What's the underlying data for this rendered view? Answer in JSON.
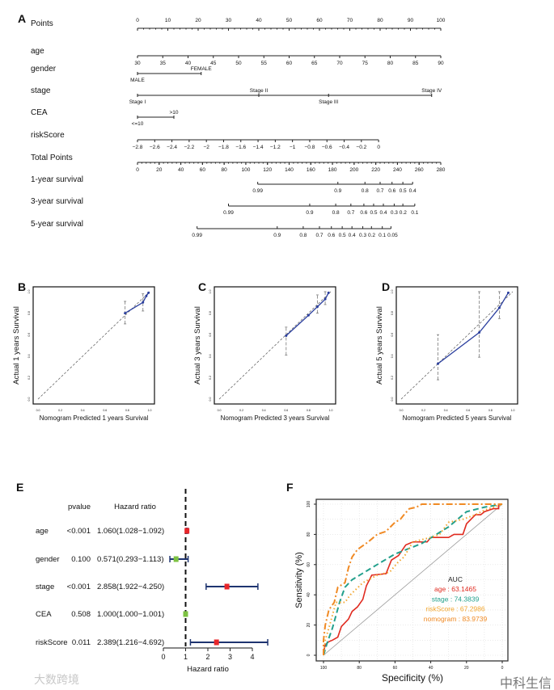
{
  "panels": {
    "A": "A",
    "B": "B",
    "C": "C",
    "D": "D",
    "E": "E",
    "F": "F"
  },
  "watermarks": {
    "left": "大数跨境",
    "right": "中科生信"
  },
  "chart_data": [
    {
      "type": "nomogram",
      "panel": "A",
      "rows": [
        {
          "label": "Points",
          "kind": "points",
          "min": 0,
          "max": 100,
          "ticks": [
            0,
            10,
            20,
            30,
            40,
            50,
            60,
            70,
            80,
            90,
            100
          ]
        },
        {
          "label": "age",
          "kind": "linear",
          "ticks": [
            30,
            35,
            40,
            45,
            50,
            55,
            60,
            65,
            70,
            75,
            80,
            85,
            90
          ],
          "points_range": [
            0,
            100
          ]
        },
        {
          "label": "gender",
          "kind": "categorical",
          "levels": [
            {
              "name": "MALE",
              "points": 0,
              "side": "below"
            },
            {
              "name": "FEMALE",
              "points": 21,
              "side": "above"
            }
          ]
        },
        {
          "label": "stage",
          "kind": "categorical",
          "levels": [
            {
              "name": "Stage I",
              "points": 0,
              "side": "below"
            },
            {
              "name": "Stage II",
              "points": 40,
              "side": "above"
            },
            {
              "name": "Stage III",
              "points": 63,
              "side": "below"
            },
            {
              "name": "Stage IV",
              "points": 97,
              "side": "above"
            }
          ]
        },
        {
          "label": "CEA",
          "kind": "categorical",
          "levels": [
            {
              "name": "<=10",
              "points": 0,
              "side": "below"
            },
            {
              "name": ">10",
              "points": 12,
              "side": "above"
            }
          ]
        },
        {
          "label": "riskScore",
          "kind": "linear",
          "ticks": [
            -2.8,
            -2.6,
            -2.4,
            -2.2,
            -2,
            -1.8,
            -1.6,
            -1.4,
            -1.2,
            -1,
            -0.8,
            -0.6,
            -0.4,
            -0.2,
            0
          ],
          "points_range": [
            0,
            79.5
          ]
        },
        {
          "label": "Total Points",
          "kind": "total",
          "min": 0,
          "max": 280,
          "ticks": [
            0,
            20,
            40,
            60,
            80,
            100,
            120,
            140,
            160,
            180,
            200,
            220,
            240,
            260,
            280
          ]
        },
        {
          "label": "1-year survival",
          "kind": "prob",
          "ticks": [
            {
              "v": "0.99",
              "tp": 111
            },
            {
              "v": "0.9",
              "tp": 185
            },
            {
              "v": "0.8",
              "tp": 210
            },
            {
              "v": "0.7",
              "tp": 224
            },
            {
              "v": "0.6",
              "tp": 235
            },
            {
              "v": "0.5",
              "tp": 245
            },
            {
              "v": "0.4",
              "tp": 254
            }
          ]
        },
        {
          "label": "3-year survival",
          "kind": "prob",
          "ticks": [
            {
              "v": "0.99",
              "tp": 84
            },
            {
              "v": "0.9",
              "tp": 159
            },
            {
              "v": "0.8",
              "tp": 183
            },
            {
              "v": "0.7",
              "tp": 197
            },
            {
              "v": "0.6",
              "tp": 209
            },
            {
              "v": "0.5",
              "tp": 218
            },
            {
              "v": "0.4",
              "tp": 227
            },
            {
              "v": "0.3",
              "tp": 237
            },
            {
              "v": "0.2",
              "tp": 245
            },
            {
              "v": "0.1",
              "tp": 256
            }
          ]
        },
        {
          "label": "5-year survival",
          "kind": "prob",
          "ticks": [
            {
              "v": "0.99",
              "tp": 55
            },
            {
              "v": "0.9",
              "tp": 129
            },
            {
              "v": "0.8",
              "tp": 153
            },
            {
              "v": "0.7",
              "tp": 168
            },
            {
              "v": "0.6",
              "tp": 179
            },
            {
              "v": "0.5",
              "tp": 189
            },
            {
              "v": "0.4",
              "tp": 198
            },
            {
              "v": "0.3",
              "tp": 208
            },
            {
              "v": "0.2",
              "tp": 216
            },
            {
              "v": "0.1",
              "tp": 226
            },
            {
              "v": "0.05",
              "tp": 234
            }
          ]
        }
      ]
    },
    {
      "type": "line",
      "panel": "B",
      "xlabel": "Nomogram Predicted 1 years Survival",
      "ylabel": "Actual 1 years Survival",
      "xlim": [
        0,
        1
      ],
      "ylim": [
        0,
        1
      ],
      "ticks": [
        "0.0",
        "0.2",
        "0.4",
        "0.6",
        "0.8",
        "1.0"
      ],
      "points": [
        [
          0.78,
          0.8
        ],
        [
          0.94,
          0.9
        ],
        [
          0.97,
          0.96
        ],
        [
          0.99,
          0.99
        ]
      ],
      "errorbars": [
        [
          0.78,
          0.7,
          0.91
        ],
        [
          0.94,
          0.82,
          0.98
        ]
      ]
    },
    {
      "type": "line",
      "panel": "C",
      "xlabel": "Nomogram Predicted 3 years Survival",
      "ylabel": "Actual 3 years Survival",
      "xlim": [
        0,
        1
      ],
      "ylim": [
        0,
        1
      ],
      "ticks": [
        "0.0",
        "0.2",
        "0.4",
        "0.6",
        "0.8",
        "1.0"
      ],
      "points": [
        [
          0.6,
          0.59
        ],
        [
          0.8,
          0.78
        ],
        [
          0.88,
          0.86
        ],
        [
          0.95,
          0.93
        ],
        [
          0.98,
          0.99
        ]
      ],
      "errorbars": [
        [
          0.6,
          0.41,
          0.67
        ],
        [
          0.88,
          0.8,
          0.97
        ],
        [
          0.95,
          0.88,
          1.0
        ]
      ]
    },
    {
      "type": "line",
      "panel": "D",
      "xlabel": "Nomogram Predicted 5 years Survival",
      "ylabel": "Actual 5 years Survival",
      "xlim": [
        0,
        1
      ],
      "ylim": [
        0,
        1
      ],
      "ticks": [
        "0.0",
        "0.2",
        "0.4",
        "0.6",
        "0.8",
        "1.0"
      ],
      "points": [
        [
          0.33,
          0.33
        ],
        [
          0.7,
          0.62
        ],
        [
          0.88,
          0.85
        ],
        [
          0.96,
          0.99
        ]
      ],
      "errorbars": [
        [
          0.33,
          0.18,
          0.6
        ],
        [
          0.7,
          0.39,
          1.0
        ],
        [
          0.88,
          0.75,
          1.0
        ]
      ]
    },
    {
      "type": "forest",
      "panel": "E",
      "col_pvalue": "pvalue",
      "col_hr": "Hazard ratio",
      "xlabel": "Hazard ratio",
      "xlim": [
        0,
        4
      ],
      "xticks": [
        0,
        1,
        2,
        3,
        4
      ],
      "ref": 1,
      "rows": [
        {
          "name": "age",
          "pvalue": "<0.001",
          "hr_text": "1.060(1.028−1.092)",
          "hr": 1.06,
          "lo": 1.028,
          "hi": 1.092,
          "color": "#e8262a"
        },
        {
          "name": "gender",
          "pvalue": "0.100",
          "hr_text": "0.571(0.293−1.113)",
          "hr": 0.571,
          "lo": 0.293,
          "hi": 1.113,
          "color": "#7dc242"
        },
        {
          "name": "stage",
          "pvalue": "<0.001",
          "hr_text": "2.858(1.922−4.250)",
          "hr": 2.858,
          "lo": 1.922,
          "hi": 4.25,
          "color": "#e8262a"
        },
        {
          "name": "CEA",
          "pvalue": "0.508",
          "hr_text": "1.000(1.000−1.001)",
          "hr": 1.0,
          "lo": 1.0,
          "hi": 1.001,
          "color": "#7dc242"
        },
        {
          "name": "riskScore",
          "pvalue": "0.011",
          "hr_text": "2.389(1.216−4.692)",
          "hr": 2.389,
          "lo": 1.216,
          "hi": 4.692,
          "color": "#e8262a"
        }
      ]
    },
    {
      "type": "line",
      "panel": "F",
      "subtype": "roc",
      "xlabel": "Specificity (%)",
      "ylabel": "Sensitivity (%)",
      "xlim": [
        100,
        0
      ],
      "ylim": [
        0,
        100
      ],
      "xticks": [
        100,
        80,
        60,
        40,
        20,
        0
      ],
      "yticks": [
        0,
        20,
        40,
        60,
        80,
        100
      ],
      "legend_title": "AUC",
      "legend_position": "center-right",
      "series": [
        {
          "name": "age",
          "auc": "63.1465",
          "label": "age : 63.1465",
          "color": "#e02a1f",
          "dash": "",
          "points": [
            [
              100,
              0
            ],
            [
              100,
              2
            ],
            [
              99,
              7
            ],
            [
              97,
              9
            ],
            [
              95,
              10
            ],
            [
              92,
              12
            ],
            [
              90,
              19
            ],
            [
              86,
              24
            ],
            [
              84,
              29
            ],
            [
              81,
              32
            ],
            [
              78,
              37
            ],
            [
              76,
              46
            ],
            [
              73,
              53
            ],
            [
              65,
              54
            ],
            [
              62,
              63
            ],
            [
              58,
              66
            ],
            [
              54,
              73
            ],
            [
              50,
              75
            ],
            [
              42,
              75
            ],
            [
              40,
              78
            ],
            [
              30,
              78
            ],
            [
              27,
              80
            ],
            [
              22,
              80
            ],
            [
              20,
              87
            ],
            [
              15,
              93
            ],
            [
              12,
              93
            ],
            [
              10,
              95
            ],
            [
              5,
              97
            ],
            [
              2,
              97
            ],
            [
              2,
              100
            ],
            [
              0,
              100
            ]
          ]
        },
        {
          "name": "stage",
          "auc": "74.3839",
          "label": "stage : 74.3839",
          "color": "#23a08c",
          "dash": "7,4",
          "points": [
            [
              100,
              0
            ],
            [
              98,
              8
            ],
            [
              95,
              18
            ],
            [
              91,
              35
            ],
            [
              88,
              45
            ],
            [
              84,
              50
            ],
            [
              70,
              60
            ],
            [
              60,
              67
            ],
            [
              45,
              74
            ],
            [
              30,
              85
            ],
            [
              20,
              95
            ],
            [
              10,
              98
            ],
            [
              0,
              100
            ]
          ]
        },
        {
          "name": "riskScore",
          "auc": "67.2986",
          "label": "riskScore : 67.2986",
          "color": "#f2a62e",
          "dash": "1.5,3",
          "points": [
            [
              100,
              0
            ],
            [
              99,
              10
            ],
            [
              97,
              18
            ],
            [
              93,
              35
            ],
            [
              88,
              35
            ],
            [
              85,
              40
            ],
            [
              78,
              48
            ],
            [
              70,
              53
            ],
            [
              63,
              55
            ],
            [
              58,
              62
            ],
            [
              55,
              65
            ],
            [
              50,
              75
            ],
            [
              40,
              78
            ],
            [
              35,
              80
            ],
            [
              30,
              88
            ],
            [
              22,
              90
            ],
            [
              15,
              93
            ],
            [
              10,
              96
            ],
            [
              0,
              100
            ]
          ]
        },
        {
          "name": "nomogram",
          "auc": "83.9739",
          "label": "nomogram : 83.9739",
          "color": "#f08a24",
          "dash": "8,3,2,3",
          "points": [
            [
              100,
              0
            ],
            [
              100,
              10
            ],
            [
              99,
              20
            ],
            [
              97,
              30
            ],
            [
              94,
              35
            ],
            [
              92,
              45
            ],
            [
              88,
              48
            ],
            [
              86,
              58
            ],
            [
              84,
              65
            ],
            [
              81,
              70
            ],
            [
              75,
              75
            ],
            [
              70,
              80
            ],
            [
              65,
              82
            ],
            [
              60,
              88
            ],
            [
              57,
              90
            ],
            [
              55,
              93
            ],
            [
              52,
              97
            ],
            [
              48,
              98
            ],
            [
              45,
              100
            ],
            [
              0,
              100
            ]
          ]
        }
      ]
    }
  ]
}
